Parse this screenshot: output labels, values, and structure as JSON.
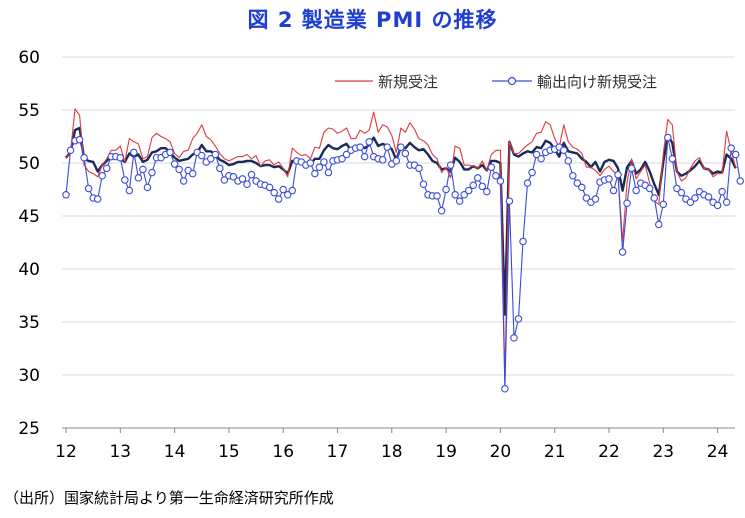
{
  "chart_data": {
    "type": "line",
    "title": "図 2 製造業 PMI の推移",
    "note": "（出所）国家統計局より第一生命経済研究所作成",
    "ylim": [
      25,
      60
    ],
    "yticks": [
      "25",
      "30",
      "35",
      "40",
      "45",
      "50",
      "55",
      "60"
    ],
    "xlim": [
      2012,
      2024.4
    ],
    "xticks": [
      "12",
      "13",
      "14",
      "15",
      "16",
      "17",
      "18",
      "19",
      "20",
      "21",
      "22",
      "23",
      "24"
    ],
    "grid": "horizontal",
    "legend_position": "top-right",
    "start": "2012-01",
    "series": [
      {
        "name": "",
        "color": "#1a2a5a",
        "values": [
          50.5,
          51.0,
          53.1,
          53.3,
          50.4,
          50.2,
          50.1,
          49.2,
          49.8,
          50.2,
          50.6,
          50.6,
          50.4,
          50.1,
          50.9,
          50.6,
          50.8,
          50.1,
          50.3,
          51.0,
          51.1,
          51.4,
          51.4,
          51.0,
          50.5,
          50.2,
          50.3,
          50.4,
          50.8,
          51.0,
          51.7,
          51.1,
          51.1,
          50.8,
          50.3,
          50.1,
          49.8,
          49.9,
          50.1,
          50.1,
          50.2,
          50.2,
          50.0,
          49.7,
          49.8,
          49.8,
          49.6,
          49.7,
          49.4,
          49.0,
          50.2,
          50.1,
          50.1,
          50.0,
          49.9,
          50.4,
          50.4,
          51.2,
          51.7,
          51.4,
          51.3,
          51.6,
          51.8,
          51.2,
          51.2,
          51.7,
          51.4,
          51.7,
          52.4,
          51.6,
          51.8,
          51.6,
          51.3,
          50.3,
          51.5,
          51.4,
          51.9,
          51.5,
          51.2,
          51.3,
          50.8,
          50.2,
          50.0,
          49.4,
          49.5,
          49.2,
          50.5,
          50.1,
          49.4,
          49.4,
          49.7,
          49.5,
          49.8,
          49.3,
          50.2,
          50.2,
          50.0,
          35.7,
          52.0,
          50.8,
          50.6,
          50.9,
          51.1,
          51.0,
          51.5,
          51.4,
          52.1,
          51.9,
          51.3,
          50.6,
          51.9,
          51.1,
          51.0,
          50.9,
          50.4,
          50.1,
          49.6,
          50.1,
          49.2,
          50.1,
          50.3,
          50.2,
          49.5,
          47.4,
          49.6,
          50.2,
          49.0,
          49.4,
          50.1,
          49.2,
          48.0,
          47.0,
          50.1,
          52.6,
          51.9,
          49.2,
          48.8,
          49.0,
          49.3,
          49.7,
          50.2,
          49.5,
          49.4,
          49.0,
          49.2,
          49.1,
          50.8,
          50.4,
          49.5
        ]
      },
      {
        "name": "新規受注",
        "color": "#e03a3a",
        "values": [
          50.4,
          51.0,
          55.1,
          54.5,
          49.8,
          49.2,
          49.0,
          48.7,
          49.8,
          50.4,
          51.2,
          51.2,
          51.6,
          50.1,
          52.3,
          52.0,
          51.8,
          50.4,
          50.6,
          52.4,
          52.8,
          52.5,
          52.3,
          52.0,
          50.9,
          50.5,
          51.1,
          51.2,
          52.3,
          52.8,
          53.6,
          52.5,
          52.2,
          51.6,
          50.9,
          50.4,
          50.2,
          50.4,
          50.6,
          50.6,
          50.8,
          50.4,
          50.7,
          49.7,
          50.2,
          50.3,
          49.8,
          50.1,
          49.5,
          48.7,
          51.4,
          51.0,
          50.7,
          50.8,
          50.4,
          51.5,
          51.4,
          52.9,
          53.3,
          53.2,
          52.8,
          53.0,
          53.3,
          52.3,
          52.3,
          53.1,
          52.8,
          53.1,
          54.8,
          52.9,
          53.6,
          53.4,
          52.6,
          51.0,
          53.3,
          52.9,
          53.8,
          53.2,
          52.3,
          52.1,
          51.7,
          50.8,
          50.4,
          49.1,
          49.6,
          48.6,
          51.6,
          51.4,
          49.8,
          49.8,
          49.7,
          49.5,
          50.2,
          49.3,
          50.8,
          51.2,
          51.2,
          29.3,
          52.0,
          50.9,
          50.9,
          51.3,
          51.7,
          52.0,
          52.8,
          52.9,
          53.9,
          53.6,
          52.3,
          51.5,
          53.6,
          52.0,
          51.5,
          51.3,
          50.9,
          49.6,
          49.6,
          49.3,
          48.8,
          49.4,
          49.7,
          49.2,
          48.8,
          42.6,
          48.2,
          50.4,
          48.5,
          49.2,
          49.8,
          48.1,
          46.4,
          46.1,
          50.9,
          54.1,
          53.6,
          49.2,
          48.3,
          48.6,
          49.5,
          50.2,
          50.5,
          49.5,
          49.4,
          48.7,
          49.0,
          49.0,
          53.0,
          51.1,
          49.6
        ]
      },
      {
        "name": "輸出向け新規受注",
        "color": "#3b4bd8",
        "values": [
          47.0,
          51.2,
          52.1,
          52.2,
          50.5,
          47.6,
          46.7,
          46.6,
          48.8,
          49.5,
          50.6,
          50.6,
          50.5,
          48.4,
          47.4,
          51.0,
          48.6,
          49.4,
          47.7,
          49.1,
          50.5,
          50.5,
          50.8,
          51.0,
          49.9,
          49.4,
          48.3,
          49.3,
          49.0,
          51.0,
          50.7,
          50.1,
          50.4,
          50.8,
          49.5,
          48.4,
          48.8,
          48.7,
          48.3,
          48.5,
          48.0,
          48.9,
          48.3,
          48.0,
          47.9,
          47.7,
          47.2,
          46.6,
          47.5,
          47.0,
          47.4,
          50.2,
          50.1,
          49.8,
          50.0,
          49.0,
          49.6,
          50.1,
          49.1,
          50.2,
          50.3,
          50.4,
          50.8,
          51.2,
          51.4,
          51.5,
          50.6,
          52.0,
          50.6,
          50.4,
          50.3,
          51.5,
          49.9,
          50.2,
          51.5,
          50.9,
          49.8,
          49.8,
          49.5,
          48.0,
          47.0,
          46.9,
          46.9,
          45.5,
          47.5,
          49.8,
          47.0,
          46.4,
          47.0,
          47.4,
          47.9,
          48.6,
          47.8,
          47.3,
          49.6,
          48.8,
          48.3,
          28.7,
          46.4,
          33.5,
          35.3,
          42.6,
          48.1,
          49.1,
          50.8,
          50.4,
          51.0,
          51.2,
          51.3,
          51.5,
          51.2,
          50.2,
          48.8,
          48.1,
          47.7,
          46.7,
          46.3,
          46.6,
          48.2,
          48.4,
          48.5,
          47.4,
          48.9,
          41.6,
          46.2,
          49.5,
          47.4,
          48.1,
          47.9,
          47.6,
          46.7,
          44.2,
          46.1,
          52.4,
          50.4,
          47.6,
          47.2,
          46.6,
          46.3,
          46.7,
          47.3,
          47.0,
          46.8,
          46.3,
          46.0,
          47.3,
          46.3,
          51.4,
          50.8,
          48.3
        ]
      }
    ]
  },
  "colors": {
    "title": "#1f3fd0",
    "grid": "#d9d9d9",
    "axis": "#888888"
  }
}
